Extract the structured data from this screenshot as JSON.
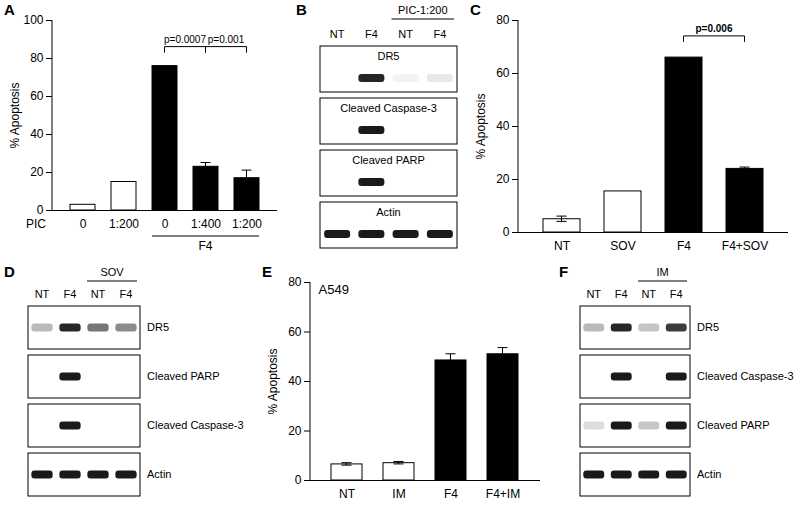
{
  "chart_data": [
    {
      "panel": "A",
      "type": "bar",
      "categories": [
        "0",
        "1:200",
        "0",
        "1:400",
        "1:200"
      ],
      "x_row_label": "PIC",
      "groups": [
        {
          "label": "F4",
          "from": 2,
          "to": 4
        }
      ],
      "values": [
        3,
        15,
        76,
        23,
        17
      ],
      "error": [
        0,
        0,
        0,
        2,
        4
      ],
      "colors": [
        "#ffffff",
        "#ffffff",
        "#000000",
        "#000000",
        "#000000"
      ],
      "ylabel": "% Apoptosis",
      "ylim": [
        0,
        100
      ],
      "yticks": [
        0,
        20,
        40,
        60,
        80,
        100
      ],
      "annotations": [
        {
          "text": "p=0.0007",
          "from": 2,
          "to": 3
        },
        {
          "text": "p=0.001",
          "from": 3,
          "to": 4
        }
      ]
    },
    {
      "panel": "C",
      "type": "bar",
      "categories": [
        "NT",
        "SOV",
        "F4",
        "F4+SOV"
      ],
      "values": [
        5,
        15.5,
        66,
        24
      ],
      "error": [
        1,
        0,
        0,
        0.5
      ],
      "colors": [
        "#ffffff",
        "#ffffff",
        "#000000",
        "#000000"
      ],
      "ylabel": "% Apoptosis",
      "ylim": [
        0,
        80
      ],
      "yticks": [
        0,
        20,
        40,
        60,
        80
      ],
      "annotations": [
        {
          "text": "p=0.006",
          "from": 2,
          "to": 3
        }
      ]
    },
    {
      "panel": "E",
      "type": "bar",
      "title": "A549",
      "categories": [
        "NT",
        "IM",
        "F4",
        "F4+IM"
      ],
      "values": [
        6.5,
        7,
        48.5,
        51
      ],
      "error": [
        0.5,
        0.5,
        2.5,
        2.5
      ],
      "colors": [
        "#ffffff",
        "#ffffff",
        "#000000",
        "#000000"
      ],
      "ylabel": "% Apoptosis",
      "ylim": [
        0,
        80
      ],
      "yticks": [
        0,
        20,
        40,
        60,
        80
      ]
    }
  ],
  "blots": [
    {
      "panel": "B",
      "header": {
        "label": "PIC-1:200",
        "from": 2,
        "to": 3
      },
      "lanes": [
        "NT",
        "F4",
        "NT",
        "F4"
      ],
      "rows": [
        {
          "label": "DR5",
          "intensity": [
            0,
            0.95,
            0.05,
            0.1
          ]
        },
        {
          "label": "Cleaved Caspase-3",
          "intensity": [
            0,
            1,
            0,
            0
          ]
        },
        {
          "label": "Cleaved PARP",
          "intensity": [
            0,
            1,
            0,
            0
          ]
        },
        {
          "label": "Actin",
          "intensity": [
            1,
            1,
            1,
            1
          ]
        }
      ]
    },
    {
      "panel": "D",
      "header": {
        "label": "SOV",
        "from": 2,
        "to": 3
      },
      "lanes": [
        "NT",
        "F4",
        "NT",
        "F4"
      ],
      "rows": [
        {
          "label": "DR5",
          "intensity": [
            0.3,
            0.95,
            0.6,
            0.5
          ]
        },
        {
          "label": "Cleaved PARP",
          "intensity": [
            0,
            1,
            0,
            0
          ]
        },
        {
          "label": "Cleaved Caspase-3",
          "intensity": [
            0,
            1,
            0,
            0
          ]
        },
        {
          "label": "Actin",
          "intensity": [
            1,
            1,
            1,
            1
          ]
        }
      ]
    },
    {
      "panel": "F",
      "header": {
        "label": "IM",
        "from": 2,
        "to": 3
      },
      "lanes": [
        "NT",
        "F4",
        "NT",
        "F4"
      ],
      "rows": [
        {
          "label": "DR5",
          "intensity": [
            0.3,
            0.95,
            0.25,
            0.85
          ]
        },
        {
          "label": "Cleaved Caspase-3",
          "intensity": [
            0,
            1,
            0,
            1
          ]
        },
        {
          "label": "Cleaved PARP",
          "intensity": [
            0.15,
            1,
            0.25,
            1
          ]
        },
        {
          "label": "Actin",
          "intensity": [
            1,
            1,
            1,
            1
          ]
        }
      ]
    }
  ]
}
